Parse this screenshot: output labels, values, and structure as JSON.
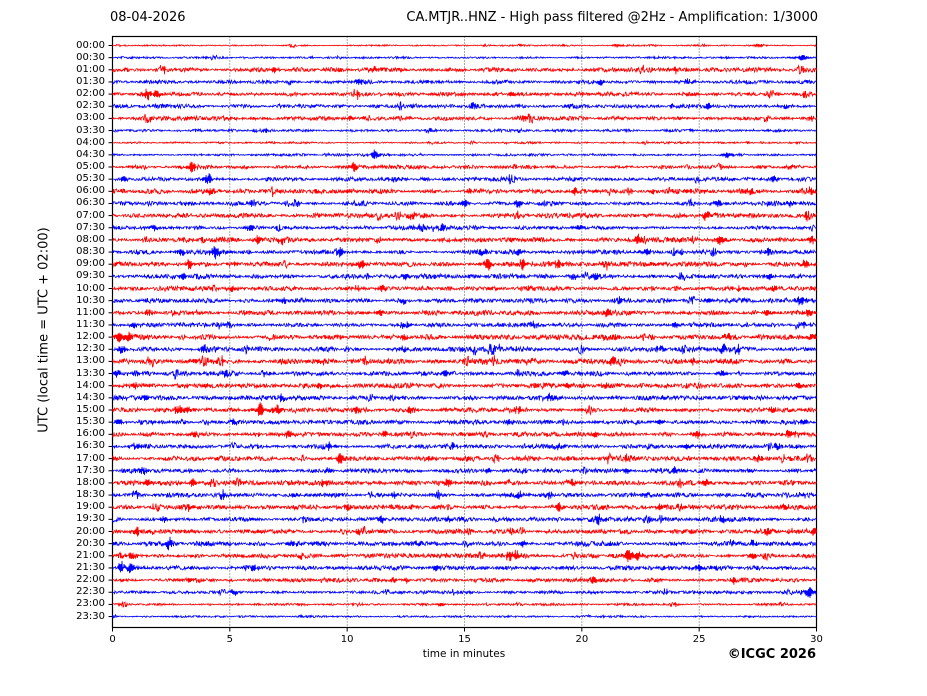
{
  "chart_data": {
    "type": "line",
    "subtype": "helicorder-seismogram",
    "station": "CA.MTJR..HNZ",
    "date": "08-04-2026",
    "title": "CA.MTJR..HNZ - High pass filtered @2Hz - Amplification: 1/3000",
    "xlabel": "time in minutes",
    "ylabel": "UTC (local time = UTC + 02:00)",
    "copyright": "©ICGC 2026",
    "xlim": [
      0,
      30
    ],
    "x_ticks": [
      0,
      5,
      10,
      15,
      20,
      25,
      30
    ],
    "grid_minutes": [
      5,
      10,
      15,
      20,
      25
    ],
    "grid_on": true,
    "colors": {
      "red": "#ff0000",
      "blue": "#0000ff",
      "frame": "#000000",
      "grid": "#444444"
    },
    "trace_note": "48 half-hour traces, alternating red (:00) and blue (:30); amp = background noise level, events = [minute, relative spike amplitude]",
    "traces": [
      {
        "label": "00:00",
        "color": "red",
        "amp": 0.35,
        "events": [
          [
            21.5,
            0.5
          ],
          [
            27.5,
            0.6
          ]
        ]
      },
      {
        "label": "00:30",
        "color": "blue",
        "amp": 0.45,
        "events": [
          [
            29.4,
            1.5
          ]
        ]
      },
      {
        "label": "01:00",
        "color": "red",
        "amp": 0.95,
        "events": [
          [
            0.5,
            1.0
          ],
          [
            6.9,
            1.3
          ],
          [
            11.1,
            1.2
          ],
          [
            24.0,
            1.1
          ]
        ]
      },
      {
        "label": "01:30",
        "color": "blue",
        "amp": 0.8,
        "events": [
          [
            10.5,
            1.4
          ],
          [
            20.8,
            1.2
          ],
          [
            24.5,
            1.0
          ]
        ]
      },
      {
        "label": "02:00",
        "color": "red",
        "amp": 0.95,
        "events": [
          [
            1.5,
            2.0
          ],
          [
            1.9,
            1.6
          ],
          [
            10.4,
            1.3
          ],
          [
            17.0,
            1.0
          ]
        ]
      },
      {
        "label": "02:30",
        "color": "blue",
        "amp": 0.85,
        "events": [
          [
            15.4,
            1.3
          ],
          [
            25.4,
            1.3
          ],
          [
            28.7,
            1.1
          ]
        ]
      },
      {
        "label": "03:00",
        "color": "red",
        "amp": 0.95,
        "events": [
          [
            10.2,
            1.2
          ],
          [
            17.5,
            1.0
          ],
          [
            29.8,
            1.0
          ]
        ]
      },
      {
        "label": "03:30",
        "color": "blue",
        "amp": 0.6,
        "events": [
          [
            6.5,
            0.8
          ]
        ]
      },
      {
        "label": "04:00",
        "color": "red",
        "amp": 0.45,
        "events": []
      },
      {
        "label": "04:30",
        "color": "blue",
        "amp": 0.55,
        "events": [
          [
            11.2,
            2.0
          ],
          [
            26.2,
            1.3
          ]
        ]
      },
      {
        "label": "05:00",
        "color": "red",
        "amp": 0.85,
        "events": [
          [
            3.4,
            2.2
          ],
          [
            10.3,
            1.7
          ],
          [
            28.9,
            1.0
          ]
        ]
      },
      {
        "label": "05:30",
        "color": "blue",
        "amp": 0.9,
        "events": [
          [
            0.5,
            1.2
          ],
          [
            4.1,
            2.4
          ],
          [
            12.0,
            1.1
          ],
          [
            28.2,
            1.5
          ]
        ]
      },
      {
        "label": "06:00",
        "color": "red",
        "amp": 1.1,
        "events": [
          [
            4.2,
            1.7
          ],
          [
            15.2,
            1.3
          ],
          [
            19.7,
            1.5
          ],
          [
            27.2,
            1.4
          ],
          [
            29.7,
            1.3
          ]
        ]
      },
      {
        "label": "06:30",
        "color": "blue",
        "amp": 1.05,
        "events": [
          [
            15.0,
            1.5
          ],
          [
            17.3,
            1.8
          ],
          [
            25.8,
            1.4
          ],
          [
            28.9,
            1.3
          ]
        ]
      },
      {
        "label": "07:00",
        "color": "red",
        "amp": 1.1,
        "events": [
          [
            12.8,
            1.5
          ],
          [
            25.3,
            2.4
          ],
          [
            29.6,
            1.5
          ]
        ]
      },
      {
        "label": "07:30",
        "color": "blue",
        "amp": 0.9,
        "events": [
          [
            1.8,
            1.2
          ],
          [
            5.9,
            2.2
          ],
          [
            14.1,
            1.2
          ],
          [
            19.9,
            1.3
          ]
        ]
      },
      {
        "label": "08:00",
        "color": "red",
        "amp": 1.1,
        "events": [
          [
            6.2,
            1.5
          ],
          [
            7.2,
            1.4
          ],
          [
            22.4,
            1.8
          ],
          [
            25.9,
            2.2
          ],
          [
            29.8,
            1.7
          ]
        ]
      },
      {
        "label": "08:30",
        "color": "blue",
        "amp": 1.0,
        "events": [
          [
            3.0,
            1.6
          ],
          [
            4.4,
            2.6
          ],
          [
            9.7,
            2.2
          ],
          [
            15.8,
            1.5
          ],
          [
            17.3,
            1.4
          ],
          [
            22.8,
            1.5
          ],
          [
            27.9,
            1.2
          ]
        ]
      },
      {
        "label": "09:00",
        "color": "red",
        "amp": 1.05,
        "events": [
          [
            3.3,
            1.8
          ],
          [
            10.6,
            2.0
          ],
          [
            16.0,
            2.4
          ],
          [
            17.5,
            2.2
          ],
          [
            19.0,
            1.6
          ],
          [
            21.0,
            1.2
          ],
          [
            29.5,
            1.6
          ]
        ]
      },
      {
        "label": "09:30",
        "color": "blue",
        "amp": 1.05,
        "events": [
          [
            3.0,
            1.3
          ],
          [
            12.5,
            1.5
          ],
          [
            20.6,
            1.8
          ],
          [
            28.0,
            1.3
          ]
        ]
      },
      {
        "label": "10:00",
        "color": "red",
        "amp": 1.05,
        "events": [
          [
            5.0,
            1.3
          ],
          [
            11.5,
            1.4
          ],
          [
            17.8,
            1.2
          ],
          [
            28.2,
            1.5
          ]
        ]
      },
      {
        "label": "10:30",
        "color": "blue",
        "amp": 1.0,
        "events": [
          [
            7.3,
            1.3
          ],
          [
            12.4,
            1.5
          ],
          [
            21.6,
            1.2
          ],
          [
            25.4,
            1.2
          ],
          [
            29.3,
            1.5
          ]
        ]
      },
      {
        "label": "11:00",
        "color": "red",
        "amp": 1.1,
        "events": [
          [
            1.5,
            1.3
          ],
          [
            11.4,
            1.5
          ],
          [
            21.1,
            1.7
          ],
          [
            27.9,
            1.3
          ],
          [
            29.7,
            1.7
          ]
        ]
      },
      {
        "label": "11:30",
        "color": "blue",
        "amp": 1.0,
        "events": [
          [
            0.9,
            1.3
          ],
          [
            12.4,
            1.3
          ],
          [
            18.0,
            1.2
          ],
          [
            24.0,
            1.3
          ],
          [
            29.5,
            1.3
          ]
        ]
      },
      {
        "label": "12:00",
        "color": "red",
        "amp": 1.1,
        "events": [
          [
            0.3,
            2.4
          ],
          [
            0.7,
            1.8
          ],
          [
            12.4,
            1.5
          ],
          [
            21.0,
            1.3
          ],
          [
            26.2,
            1.5
          ],
          [
            29.8,
            1.8
          ]
        ]
      },
      {
        "label": "12:30",
        "color": "blue",
        "amp": 1.05,
        "events": [
          [
            0.4,
            1.8
          ],
          [
            3.9,
            1.5
          ],
          [
            12.4,
            1.3
          ],
          [
            17.1,
            1.3
          ],
          [
            23.4,
            1.3
          ],
          [
            26.0,
            1.8
          ]
        ]
      },
      {
        "label": "13:00",
        "color": "red",
        "amp": 1.15,
        "events": [
          [
            4.5,
            1.3
          ],
          [
            8.9,
            1.3
          ],
          [
            17.8,
            1.3
          ],
          [
            21.3,
            1.5
          ],
          [
            24.7,
            1.3
          ]
        ]
      },
      {
        "label": "13:30",
        "color": "blue",
        "amp": 1.0,
        "events": [
          [
            0.2,
            1.6
          ],
          [
            4.8,
            1.3
          ],
          [
            14.2,
            1.3
          ],
          [
            19.3,
            1.5
          ],
          [
            26.0,
            1.2
          ]
        ]
      },
      {
        "label": "14:00",
        "color": "red",
        "amp": 1.1,
        "events": [
          [
            0.9,
            1.8
          ],
          [
            8.8,
            1.3
          ],
          [
            19.4,
            1.5
          ],
          [
            21.0,
            1.3
          ],
          [
            29.3,
            1.6
          ]
        ]
      },
      {
        "label": "14:30",
        "color": "blue",
        "amp": 1.0,
        "events": [
          [
            1.4,
            1.3
          ],
          [
            7.2,
            1.4
          ],
          [
            18.6,
            1.6
          ],
          [
            23.5,
            1.2
          ]
        ]
      },
      {
        "label": "15:00",
        "color": "red",
        "amp": 1.0,
        "events": [
          [
            2.8,
            1.5
          ],
          [
            3.2,
            1.4
          ],
          [
            6.3,
            3.2
          ],
          [
            7.0,
            1.7
          ],
          [
            10.4,
            1.7
          ],
          [
            12.7,
            1.2
          ],
          [
            17.3,
            1.3
          ],
          [
            28.1,
            1.2
          ]
        ]
      },
      {
        "label": "15:30",
        "color": "blue",
        "amp": 0.95,
        "events": [
          [
            0.3,
            1.5
          ],
          [
            5.2,
            1.2
          ],
          [
            16.9,
            1.2
          ],
          [
            23.3,
            1.3
          ],
          [
            29.5,
            1.3
          ]
        ]
      },
      {
        "label": "16:00",
        "color": "red",
        "amp": 1.1,
        "events": [
          [
            3.5,
            1.3
          ],
          [
            7.5,
            1.7
          ],
          [
            11.6,
            1.3
          ],
          [
            20.6,
            1.2
          ],
          [
            24.9,
            1.7
          ],
          [
            28.8,
            1.8
          ]
        ]
      },
      {
        "label": "16:30",
        "color": "blue",
        "amp": 1.0,
        "events": [
          [
            1.0,
            1.3
          ],
          [
            9.2,
            1.7
          ],
          [
            14.5,
            1.2
          ],
          [
            19.0,
            1.2
          ],
          [
            24.5,
            1.3
          ],
          [
            28.3,
            1.3
          ]
        ]
      },
      {
        "label": "17:00",
        "color": "red",
        "amp": 1.1,
        "events": [
          [
            9.7,
            2.2
          ],
          [
            13.5,
            1.2
          ],
          [
            21.9,
            1.5
          ],
          [
            27.5,
            1.2
          ]
        ]
      },
      {
        "label": "17:30",
        "color": "blue",
        "amp": 0.95,
        "events": [
          [
            1.3,
            1.5
          ],
          [
            9.2,
            1.2
          ],
          [
            16.0,
            1.1
          ],
          [
            21.9,
            1.2
          ],
          [
            23.9,
            1.3
          ]
        ]
      },
      {
        "label": "18:00",
        "color": "red",
        "amp": 1.1,
        "events": [
          [
            1.5,
            1.9
          ],
          [
            3.4,
            1.7
          ],
          [
            9.0,
            1.2
          ],
          [
            14.3,
            1.4
          ],
          [
            19.6,
            1.5
          ],
          [
            25.3,
            1.6
          ]
        ]
      },
      {
        "label": "18:30",
        "color": "blue",
        "amp": 1.05,
        "events": [
          [
            4.7,
            1.7
          ],
          [
            12.0,
            1.2
          ],
          [
            17.3,
            1.7
          ],
          [
            18.6,
            1.4
          ],
          [
            22.8,
            1.4
          ],
          [
            29.4,
            1.4
          ]
        ]
      },
      {
        "label": "19:00",
        "color": "red",
        "amp": 1.1,
        "events": [
          [
            3.2,
            1.3
          ],
          [
            10.0,
            1.2
          ],
          [
            19.0,
            1.9
          ],
          [
            23.3,
            1.2
          ],
          [
            28.7,
            1.7
          ]
        ]
      },
      {
        "label": "19:30",
        "color": "blue",
        "amp": 1.0,
        "events": [
          [
            2.2,
            1.2
          ],
          [
            11.5,
            1.4
          ],
          [
            14.3,
            1.2
          ],
          [
            20.7,
            1.9
          ],
          [
            26.0,
            1.2
          ]
        ]
      },
      {
        "label": "20:00",
        "color": "red",
        "amp": 1.0,
        "events": [
          [
            1.0,
            1.5
          ],
          [
            10.5,
            1.2
          ],
          [
            17.0,
            1.2
          ],
          [
            27.9,
            1.9
          ],
          [
            29.9,
            1.5
          ]
        ]
      },
      {
        "label": "20:30",
        "color": "blue",
        "amp": 1.0,
        "events": [
          [
            2.4,
            2.3
          ],
          [
            7.7,
            1.2
          ],
          [
            13.0,
            1.2
          ],
          [
            17.5,
            1.2
          ],
          [
            27.3,
            1.3
          ]
        ]
      },
      {
        "label": "21:00",
        "color": "red",
        "amp": 1.0,
        "events": [
          [
            0.8,
            1.3
          ],
          [
            8.0,
            1.2
          ],
          [
            16.9,
            1.9
          ],
          [
            17.2,
            1.5
          ],
          [
            22.0,
            2.3
          ],
          [
            22.4,
            1.7
          ],
          [
            27.3,
            1.3
          ]
        ]
      },
      {
        "label": "21:30",
        "color": "blue",
        "amp": 1.0,
        "events": [
          [
            0.4,
            2.2
          ],
          [
            0.8,
            1.7
          ],
          [
            6.0,
            1.3
          ],
          [
            13.8,
            1.2
          ],
          [
            25.0,
            1.3
          ]
        ]
      },
      {
        "label": "22:00",
        "color": "red",
        "amp": 0.95,
        "events": [
          [
            3.3,
            1.3
          ],
          [
            12.0,
            1.2
          ],
          [
            20.5,
            1.9
          ],
          [
            26.5,
            1.2
          ]
        ]
      },
      {
        "label": "22:30",
        "color": "blue",
        "amp": 0.7,
        "events": [
          [
            5.2,
            1.1
          ],
          [
            29.7,
            2.4
          ]
        ]
      },
      {
        "label": "23:00",
        "color": "red",
        "amp": 0.5,
        "events": [
          [
            14.0,
            0.8
          ]
        ]
      },
      {
        "label": "23:30",
        "color": "blue",
        "amp": 0.45,
        "events": []
      }
    ]
  }
}
